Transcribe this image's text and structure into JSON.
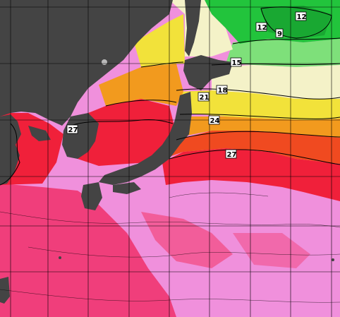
{
  "map": {
    "type": "sea-surface-temperature",
    "isotherm_labels": [
      {
        "id": "iso-12-a",
        "text": "12"
      },
      {
        "id": "iso-12-b",
        "text": "12"
      },
      {
        "id": "iso-9",
        "text": "9"
      },
      {
        "id": "iso-15",
        "text": "15"
      },
      {
        "id": "iso-18",
        "text": "18"
      },
      {
        "id": "iso-21",
        "text": "21"
      },
      {
        "id": "iso-24",
        "text": "24"
      },
      {
        "id": "iso-27-west",
        "text": "27"
      },
      {
        "id": "iso-27-east",
        "text": "27"
      }
    ],
    "colors": {
      "land": "#444444",
      "cold_green": "#22c43c",
      "cool_green": "#7ee07a",
      "pale": "#f4f2c8",
      "yellow": "#f2e23a",
      "orange": "#f29a1e",
      "red_orange": "#f04a20",
      "red": "#f0203a",
      "pink_red": "#f23a6e",
      "pink": "#f28ccc",
      "magenta": "#f090e0",
      "grid": "#000000"
    }
  }
}
